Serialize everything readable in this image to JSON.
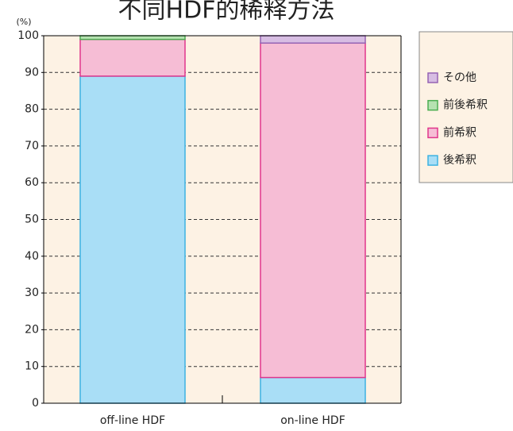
{
  "chart_data": {
    "type": "stacked_bar",
    "title": "不同HDF的稀释方法",
    "y_label": "(%)",
    "categories": [
      "off-line HDF",
      "on-line HDF"
    ],
    "series": [
      {
        "name": "後希釈",
        "color": "#a9def6",
        "stroke": "#3db2e2",
        "values": [
          89,
          7
        ]
      },
      {
        "name": "前希釈",
        "color": "#f6bdd5",
        "stroke": "#e0368c",
        "values": [
          10,
          91
        ]
      },
      {
        "name": "前後希釈",
        "color": "#b6e2b1",
        "stroke": "#4cae52",
        "values": [
          1,
          0
        ]
      },
      {
        "name": "その他",
        "color": "#d7bde3",
        "stroke": "#9563b3",
        "values": [
          0,
          2
        ]
      }
    ],
    "ylim": [
      0,
      100
    ],
    "yticks": [
      0,
      10,
      20,
      30,
      40,
      50,
      60,
      70,
      80,
      90,
      100
    ],
    "grid": true
  }
}
